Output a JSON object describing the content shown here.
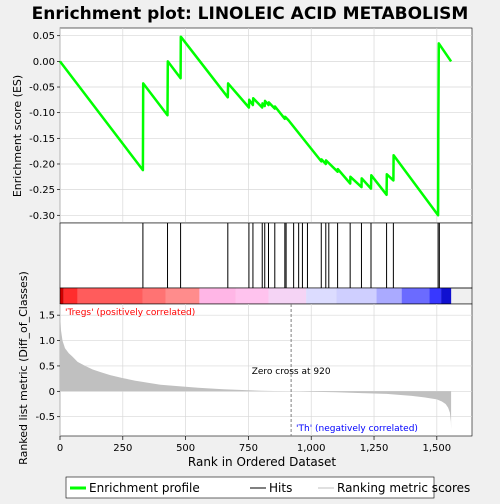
{
  "chart_data": {
    "type": "line",
    "title": "Enrichment plot: LINOLEIC ACID METABOLISM",
    "es_panel": {
      "ylabel": "Enrichment score (ES)",
      "ylim": [
        -0.315,
        0.065
      ],
      "yticks": [
        0.05,
        0.0,
        -0.05,
        -0.1,
        -0.15,
        -0.2,
        -0.25,
        -0.3
      ],
      "ytick_labels": [
        "0.05",
        "0.00",
        "-0.05",
        "-0.10",
        "-0.15",
        "-0.20",
        "-0.25",
        "-0.30"
      ],
      "grid": true,
      "line_color": "#00ff00",
      "profile": [
        [
          0,
          0.0
        ],
        [
          330,
          -0.212
        ],
        [
          331,
          -0.043
        ],
        [
          428,
          -0.105
        ],
        [
          429,
          0.0
        ],
        [
          480,
          -0.033
        ],
        [
          481,
          0.048
        ],
        [
          668,
          -0.07
        ],
        [
          669,
          -0.043
        ],
        [
          752,
          -0.09
        ],
        [
          753,
          -0.075
        ],
        [
          768,
          -0.085
        ],
        [
          769,
          -0.072
        ],
        [
          805,
          -0.09
        ],
        [
          806,
          -0.082
        ],
        [
          815,
          -0.087
        ],
        [
          816,
          -0.077
        ],
        [
          830,
          -0.085
        ],
        [
          831,
          -0.08
        ],
        [
          855,
          -0.092
        ],
        [
          856,
          -0.088
        ],
        [
          895,
          -0.112
        ],
        [
          896,
          -0.108
        ],
        [
          910,
          -0.115
        ],
        [
          1040,
          -0.195
        ],
        [
          1041,
          -0.191
        ],
        [
          1058,
          -0.2
        ],
        [
          1059,
          -0.193
        ],
        [
          1105,
          -0.215
        ],
        [
          1106,
          -0.21
        ],
        [
          1155,
          -0.238
        ],
        [
          1156,
          -0.225
        ],
        [
          1200,
          -0.245
        ],
        [
          1201,
          -0.228
        ],
        [
          1238,
          -0.248
        ],
        [
          1239,
          -0.222
        ],
        [
          1300,
          -0.26
        ],
        [
          1301,
          -0.22
        ],
        [
          1327,
          -0.232
        ],
        [
          1328,
          -0.183
        ],
        [
          1505,
          -0.3
        ],
        [
          1506,
          -0.14
        ],
        [
          1508,
          0.035
        ],
        [
          1557,
          0.0
        ]
      ]
    },
    "hits": [
      330,
      428,
      480,
      668,
      752,
      768,
      805,
      815,
      830,
      855,
      895,
      900,
      930,
      950,
      965,
      985,
      1040,
      1058,
      1070,
      1105,
      1155,
      1200,
      1238,
      1300,
      1327,
      1505,
      1510
    ],
    "ranking_panel": {
      "ylabel": "Ranked list metric (Diff_of_Classes)",
      "ylim": [
        -0.88,
        1.72
      ],
      "yticks": [
        1.5,
        1.0,
        0.5,
        0.0,
        -0.5
      ],
      "ytick_labels": [
        "1.5",
        "1.0",
        "0.5",
        "0",
        "-0.5"
      ],
      "fill_color": "#c0c0c0",
      "curve": [
        [
          0,
          1.55
        ],
        [
          4,
          1.2
        ],
        [
          10,
          1.0
        ],
        [
          20,
          0.85
        ],
        [
          35,
          0.75
        ],
        [
          50,
          0.68
        ],
        [
          70,
          0.58
        ],
        [
          100,
          0.5
        ],
        [
          130,
          0.43
        ],
        [
          160,
          0.38
        ],
        [
          200,
          0.32
        ],
        [
          250,
          0.26
        ],
        [
          300,
          0.21
        ],
        [
          350,
          0.17
        ],
        [
          400,
          0.13
        ],
        [
          450,
          0.11
        ],
        [
          500,
          0.09
        ],
        [
          550,
          0.07
        ],
        [
          600,
          0.055
        ],
        [
          650,
          0.04
        ],
        [
          700,
          0.03
        ],
        [
          750,
          0.02
        ],
        [
          800,
          0.012
        ],
        [
          850,
          0.006
        ],
        [
          920,
          0.0
        ],
        [
          1000,
          -0.01
        ],
        [
          1100,
          -0.02
        ],
        [
          1200,
          -0.035
        ],
        [
          1300,
          -0.05
        ],
        [
          1350,
          -0.07
        ],
        [
          1400,
          -0.09
        ],
        [
          1450,
          -0.12
        ],
        [
          1500,
          -0.16
        ],
        [
          1520,
          -0.2
        ],
        [
          1535,
          -0.25
        ],
        [
          1545,
          -0.32
        ],
        [
          1552,
          -0.42
        ],
        [
          1556,
          -0.6
        ],
        [
          1557,
          -0.75
        ]
      ],
      "zero_cross_label": "Zero cross at 920",
      "zero_cross_x": 920,
      "positive_label": "'Tregs' (positively correlated)",
      "negative_label": "'Th' (negatively correlated)",
      "positive_label_color": "#ff0000",
      "negative_label_color": "#0000ff"
    },
    "x_axis": {
      "xlabel": "Rank in Ordered Dataset",
      "xlim": [
        0,
        1640
      ],
      "xticks": [
        0,
        250,
        500,
        750,
        1000,
        1250,
        1500
      ],
      "xtick_labels": [
        "0",
        "250",
        "500",
        "750",
        "1,000",
        "1,250",
        "1,500"
      ]
    },
    "colorbar": {
      "n_items": 1557,
      "segments": [
        {
          "start": 0,
          "end": 15,
          "color": "#d00000"
        },
        {
          "start": 15,
          "end": 70,
          "color": "#ff2d2d"
        },
        {
          "start": 70,
          "end": 330,
          "color": "#ff5c5c"
        },
        {
          "start": 330,
          "end": 420,
          "color": "#ff7373"
        },
        {
          "start": 420,
          "end": 555,
          "color": "#ff8c8c"
        },
        {
          "start": 555,
          "end": 700,
          "color": "#ffb6e6"
        },
        {
          "start": 700,
          "end": 830,
          "color": "#ffc3ee"
        },
        {
          "start": 830,
          "end": 980,
          "color": "#f5d4f5"
        },
        {
          "start": 980,
          "end": 1100,
          "color": "#dcdcff"
        },
        {
          "start": 1100,
          "end": 1260,
          "color": "#cfcfff"
        },
        {
          "start": 1260,
          "end": 1360,
          "color": "#aaaaff"
        },
        {
          "start": 1360,
          "end": 1470,
          "color": "#6b6bff"
        },
        {
          "start": 1470,
          "end": 1517,
          "color": "#3838ff"
        },
        {
          "start": 1517,
          "end": 1557,
          "color": "#1010d0"
        }
      ]
    },
    "legend": {
      "items": [
        {
          "label": "Enrichment profile",
          "color": "#00ff00",
          "style": "thick"
        },
        {
          "label": "Hits",
          "color": "#000000",
          "style": "thin"
        },
        {
          "label": "Ranking metric scores",
          "color": "#c0c0c0",
          "style": "thin"
        }
      ]
    }
  }
}
